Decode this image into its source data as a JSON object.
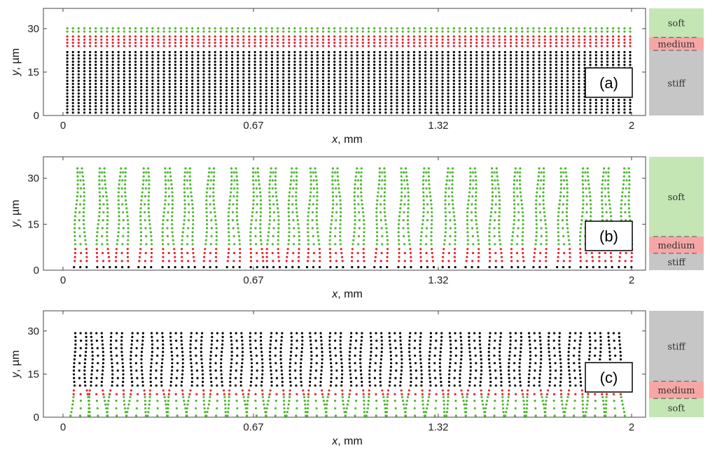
{
  "colors": {
    "stiff": "#000000",
    "medium": "#e8222a",
    "soft": "#4db82f",
    "stiff_zone": "#c6c6c6",
    "medium_zone": "#f7a6a6",
    "soft_zone": "#c4e6b4"
  },
  "chart_data": [
    {
      "type": "scatter",
      "panel_label": "(a)",
      "xlabel_var": "x",
      "xlabel_unit": ", mm",
      "ylabel_var": "y",
      "ylabel_unit": ", µm",
      "xlim": [
        0,
        2
      ],
      "ylim": [
        0,
        37
      ],
      "x_ticks": [
        "0",
        "0.67",
        "1.32",
        "2"
      ],
      "x_tick_values": [
        0,
        0.67,
        1.32,
        2
      ],
      "y_ticks": [
        "0",
        "15",
        "30"
      ],
      "y_tick_values": [
        0,
        15,
        30
      ],
      "pattern": "continuous",
      "columns": 100,
      "layers": [
        {
          "name": "stiff",
          "y_range": [
            1,
            22.5
          ]
        },
        {
          "name": "medium",
          "y_range": [
            24,
            27.5
          ]
        },
        {
          "name": "soft",
          "y_range": [
            29,
            31
          ]
        }
      ],
      "zones": [
        {
          "name": "soft",
          "label": "soft",
          "y_range": [
            27,
            37
          ]
        },
        {
          "name": "medium",
          "label": "medium",
          "y_range": [
            22.5,
            27
          ]
        },
        {
          "name": "stiff",
          "label": "stiff",
          "y_range": [
            0,
            22.5
          ]
        }
      ]
    },
    {
      "type": "scatter",
      "panel_label": "(b)",
      "xlabel_var": "x",
      "xlabel_unit": ", mm",
      "ylabel_var": "y",
      "ylabel_unit": ", µm",
      "xlim": [
        0,
        2
      ],
      "ylim": [
        0,
        37
      ],
      "x_ticks": [
        "0",
        "0.67",
        "1.32",
        "2"
      ],
      "x_tick_values": [
        0,
        0.67,
        1.32,
        2
      ],
      "y_ticks": [
        "0",
        "15",
        "30"
      ],
      "y_tick_values": [
        0,
        15,
        30
      ],
      "pattern": "pillars",
      "pillar_centers": [
        0.06,
        0.14,
        0.21,
        0.29,
        0.37,
        0.44,
        0.52,
        0.6,
        0.68,
        0.74,
        0.81,
        0.88,
        0.96,
        1.04,
        1.12,
        1.2,
        1.28,
        1.36,
        1.44,
        1.52,
        1.6,
        1.68,
        1.76,
        1.84,
        1.91,
        1.98
      ],
      "layers": [
        {
          "name": "stiff",
          "y_range": [
            1,
            2
          ]
        },
        {
          "name": "medium",
          "y_range": [
            3,
            7.5
          ]
        },
        {
          "name": "soft",
          "y_range": [
            8.5,
            33.5
          ]
        }
      ],
      "zones": [
        {
          "name": "soft",
          "label": "soft",
          "y_range": [
            11,
            37
          ]
        },
        {
          "name": "medium",
          "label": "medium",
          "y_range": [
            5.5,
            11
          ]
        },
        {
          "name": "stiff",
          "label": "stiff",
          "y_range": [
            0,
            5.5
          ]
        }
      ]
    },
    {
      "type": "scatter",
      "panel_label": "(c)",
      "xlabel_var": "x",
      "xlabel_unit": ", mm",
      "ylabel_var": "y",
      "ylabel_unit": ", µm",
      "xlim": [
        0,
        2
      ],
      "ylim": [
        0,
        37
      ],
      "x_ticks": [
        "0",
        "0.67",
        "1.32",
        "2"
      ],
      "x_tick_values": [
        0,
        0.67,
        1.32,
        2
      ],
      "y_ticks": [
        "0",
        "15",
        "30"
      ],
      "y_tick_values": [
        0,
        15,
        30
      ],
      "pattern": "pillars",
      "pillar_centers": [
        0.06,
        0.12,
        0.19,
        0.26,
        0.33,
        0.4,
        0.47,
        0.54,
        0.61,
        0.68,
        0.75,
        0.82,
        0.89,
        0.96,
        1.03,
        1.1,
        1.17,
        1.24,
        1.31,
        1.38,
        1.45,
        1.52,
        1.59,
        1.66,
        1.73,
        1.8,
        1.87,
        1.94
      ],
      "layers": [
        {
          "name": "soft",
          "y_range": [
            0.5,
            7
          ]
        },
        {
          "name": "medium",
          "y_range": [
            8,
            10
          ]
        },
        {
          "name": "stiff",
          "y_range": [
            11,
            30
          ]
        }
      ],
      "zones": [
        {
          "name": "stiff",
          "label": "stiff",
          "y_range": [
            12.5,
            37
          ]
        },
        {
          "name": "medium",
          "label": "medium",
          "y_range": [
            6.5,
            12.5
          ]
        },
        {
          "name": "soft",
          "label": "soft",
          "y_range": [
            0,
            6.5
          ]
        }
      ]
    }
  ]
}
